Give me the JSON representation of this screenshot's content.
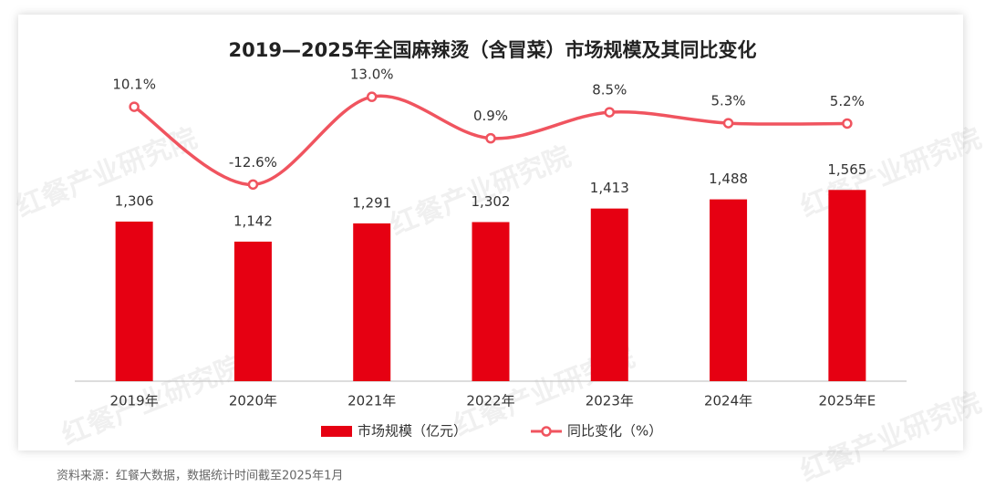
{
  "chart_data": {
    "type": "bar-line",
    "title": "2019—2025年全国麻辣烫（含冒菜）市场规模及其同比变化",
    "categories": [
      "2019年",
      "2020年",
      "2021年",
      "2022年",
      "2023年",
      "2024年",
      "2025年E"
    ],
    "series": [
      {
        "name": "市场规模（亿元）",
        "type": "bar",
        "color": "#e60012",
        "values": [
          1306,
          1142,
          1291,
          1302,
          1413,
          1488,
          1565
        ],
        "value_labels": [
          "1,306",
          "1,142",
          "1,291",
          "1,302",
          "1,413",
          "1,488",
          "1,565"
        ]
      },
      {
        "name": "同比变化（%）",
        "type": "line",
        "axis": "y2",
        "color": "#f0545f",
        "values": [
          10.1,
          -12.6,
          13.0,
          0.9,
          8.5,
          5.3,
          5.2
        ],
        "value_labels": [
          "10.1%",
          "-12.6%",
          "13.0%",
          "0.9%",
          "8.5%",
          "5.3%",
          "5.2%"
        ]
      }
    ],
    "ylim": [
      0,
      3000
    ],
    "y2lim": [
      -70,
      37
    ],
    "legend": "bottom",
    "grid": false,
    "source": "资料来源：红餐大数据，数据统计时间截至2025年1月",
    "watermark": "红餐产业研究院"
  }
}
